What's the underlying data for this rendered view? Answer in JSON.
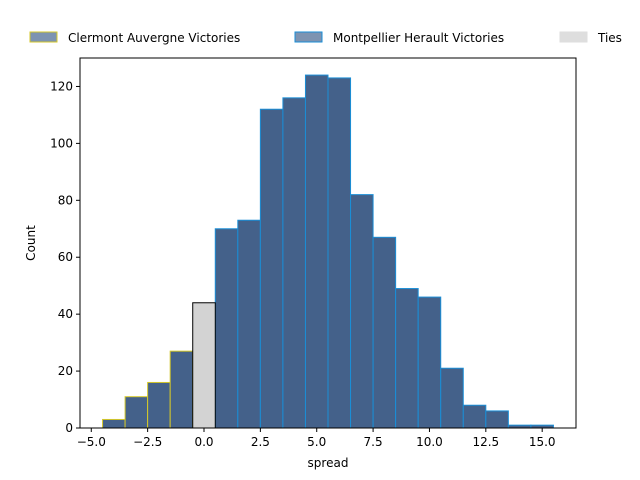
{
  "chart_data": {
    "type": "bar",
    "title": "",
    "xlabel": "spread",
    "ylabel": "Count",
    "xlim": [
      -5.5,
      16.5
    ],
    "ylim": [
      0,
      130
    ],
    "xticks": [
      -5.0,
      -2.5,
      0.0,
      2.5,
      5.0,
      7.5,
      10.0,
      12.5,
      15.0
    ],
    "xtick_labels": [
      "−5.0",
      "−2.5",
      "0.0",
      "2.5",
      "5.0",
      "7.5",
      "10.0",
      "12.5",
      "15.0"
    ],
    "yticks": [
      0,
      20,
      40,
      60,
      80,
      100,
      120
    ],
    "ytick_labels": [
      "0",
      "20",
      "40",
      "60",
      "80",
      "100",
      "120"
    ],
    "grid": false,
    "legend_placement": "top",
    "series": [
      {
        "name": "Clermont Auvergne Victories",
        "color": "#44618a",
        "edge": "#d4c72a",
        "bins": [
          {
            "x0": -4.5,
            "x1": -3.5,
            "count": 3
          },
          {
            "x0": -3.5,
            "x1": -2.5,
            "count": 11
          },
          {
            "x0": -2.5,
            "x1": -1.5,
            "count": 16
          },
          {
            "x0": -1.5,
            "x1": -0.5,
            "count": 27
          }
        ]
      },
      {
        "name": "Montpellier Herault Victories",
        "color": "#44618a",
        "edge": "#1a8ed6",
        "bins": [
          {
            "x0": 0.5,
            "x1": 1.5,
            "count": 70
          },
          {
            "x0": 1.5,
            "x1": 2.5,
            "count": 73
          },
          {
            "x0": 2.5,
            "x1": 3.5,
            "count": 112
          },
          {
            "x0": 3.5,
            "x1": 4.5,
            "count": 116
          },
          {
            "x0": 4.5,
            "x1": 5.5,
            "count": 124
          },
          {
            "x0": 5.5,
            "x1": 6.5,
            "count": 123
          },
          {
            "x0": 6.5,
            "x1": 7.5,
            "count": 82
          },
          {
            "x0": 7.5,
            "x1": 8.5,
            "count": 67
          },
          {
            "x0": 8.5,
            "x1": 9.5,
            "count": 49
          },
          {
            "x0": 9.5,
            "x1": 10.5,
            "count": 46
          },
          {
            "x0": 10.5,
            "x1": 11.5,
            "count": 21
          },
          {
            "x0": 11.5,
            "x1": 12.5,
            "count": 8
          },
          {
            "x0": 12.5,
            "x1": 13.5,
            "count": 6
          },
          {
            "x0": 13.5,
            "x1": 14.5,
            "count": 1
          },
          {
            "x0": 14.5,
            "x1": 15.5,
            "count": 1
          }
        ]
      },
      {
        "name": "Ties",
        "color": "#d3d3d3",
        "edge": "#000000",
        "bins": [
          {
            "x0": -0.5,
            "x1": 0.5,
            "count": 44
          }
        ]
      }
    ],
    "legend": [
      {
        "label": "Clermont Auvergne Victories",
        "color": "#7d93b1",
        "edge": "#d4c72a"
      },
      {
        "label": "Montpellier Herault Victories",
        "color": "#7d93b1",
        "edge": "#1a8ed6"
      },
      {
        "label": "Ties",
        "color": "#dedede",
        "edge": "#dedede"
      }
    ]
  }
}
